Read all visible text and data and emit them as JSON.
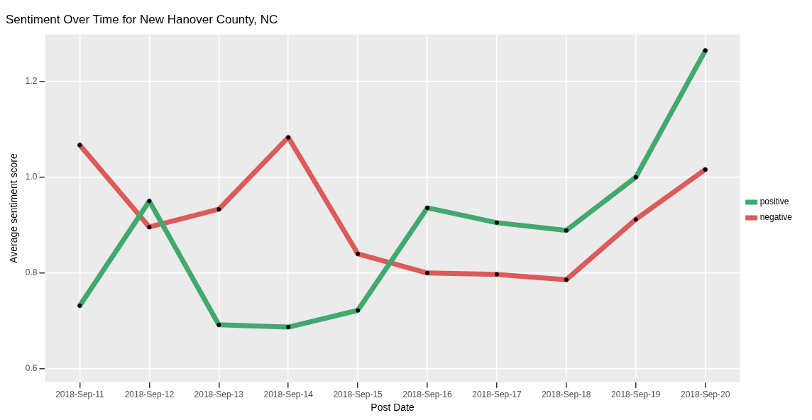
{
  "chart_data": {
    "type": "line",
    "title": "Sentiment Over Time for New Hanover County, NC",
    "xlabel": "Post Date",
    "ylabel": "Average sentiment score",
    "categories": [
      "2018-Sep-11",
      "2018-Sep-12",
      "2018-Sep-13",
      "2018-Sep-14",
      "2018-Sep-15",
      "2018-Sep-16",
      "2018-Sep-17",
      "2018-Sep-18",
      "2018-Sep-19",
      "2018-Sep-20"
    ],
    "series": [
      {
        "name": "positive",
        "color": "#41a86e",
        "values": [
          0.732,
          0.95,
          0.692,
          0.687,
          0.722,
          0.936,
          0.905,
          0.889,
          1.0,
          1.264
        ]
      },
      {
        "name": "negative",
        "color": "#dc5a5a",
        "values": [
          1.067,
          0.896,
          0.933,
          1.083,
          0.84,
          0.8,
          0.797,
          0.786,
          0.912,
          1.016
        ]
      }
    ],
    "ylim": [
      0.572,
      1.298
    ],
    "yticks": [
      0.6,
      0.8,
      {
        "value": 1,
        "label": "1.0"
      },
      1.2
    ],
    "grid": true,
    "legend": "right",
    "marker": "circle",
    "line_style": "solid"
  }
}
